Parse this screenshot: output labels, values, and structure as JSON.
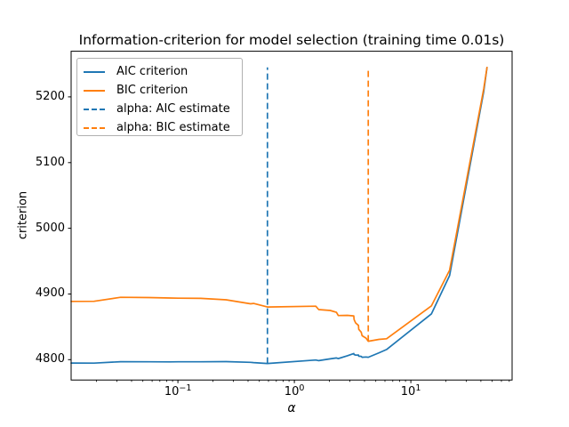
{
  "figure": {
    "title": "Information-criterion for model selection (training time 0.01s)",
    "background": "#ffffff"
  },
  "axes": {
    "xlabel": "α",
    "ylabel": "criterion",
    "x_ticks": [
      {
        "base": "10",
        "exp": "−1",
        "value": 0.1
      },
      {
        "base": "10",
        "exp": "0",
        "value": 1
      },
      {
        "base": "10",
        "exp": "1",
        "value": 10
      }
    ],
    "y_ticks": [
      {
        "label": "4800",
        "value": 4800
      },
      {
        "label": "4900",
        "value": 4900
      },
      {
        "label": "5000",
        "value": 5000
      },
      {
        "label": "5100",
        "value": 5100
      },
      {
        "label": "5200",
        "value": 5200
      }
    ]
  },
  "legend": {
    "items": [
      {
        "label": "AIC criterion",
        "color": "#1f77b4",
        "style": "solid"
      },
      {
        "label": "BIC criterion",
        "color": "#ff7f0e",
        "style": "solid"
      },
      {
        "label": "alpha: AIC estimate",
        "color": "#1f77b4",
        "style": "dashed"
      },
      {
        "label": "alpha: BIC estimate",
        "color": "#ff7f0e",
        "style": "dashed"
      }
    ]
  },
  "chart_data": {
    "type": "line",
    "title": "Information-criterion for model selection (training time 0.01s)",
    "xlabel": "α",
    "ylabel": "criterion",
    "x_scale": "log",
    "grid": false,
    "legend_position": "upper left",
    "xlim": [
      0.0121,
      74.1
    ],
    "ylim": [
      4769.0,
      5269.5
    ],
    "alphas": [
      0.0121,
      0.019,
      0.0322,
      0.0566,
      0.0852,
      0.1007,
      0.157,
      0.259,
      0.42,
      0.446,
      0.5868,
      1.5266,
      1.6183,
      2.0316,
      2.2966,
      2.3843,
      2.85,
      3.2377,
      3.2593,
      3.3583,
      3.5502,
      3.5707,
      3.7504,
      3.8207,
      4.1242,
      4.306,
      5.3296,
      6.1896,
      15.034,
      21.542,
      42.3,
      45.16
    ],
    "series": [
      {
        "name": "AIC criterion",
        "color": "#1f77b4",
        "values": [
          4794.8,
          4794.7,
          4796.9,
          4796.8,
          4796.6,
          4796.7,
          4796.8,
          4797.0,
          4795.9,
          4795.6,
          4794.2,
          4799.5,
          4798.5,
          4801.2,
          4802.6,
          4801.7,
          4806.0,
          4809.4,
          4807.7,
          4806.9,
          4807.1,
          4805.3,
          4805.0,
          4803.6,
          4804.1,
          4803.6,
          4810.4,
          4815.4,
          4869.7,
          4928.0,
          5208.3,
          5244.8
        ]
      },
      {
        "name": "BIC criterion",
        "color": "#ff7f0e",
        "values": [
          4888.7,
          4888.9,
          4894.9,
          4894.5,
          4893.9,
          4893.6,
          4893.3,
          4891.1,
          4885.0,
          4885.6,
          4880.2,
          4881.4,
          4876.2,
          4874.9,
          4872.1,
          4867.2,
          4867.4,
          4866.7,
          4860.9,
          4856.0,
          4852.1,
          4846.2,
          4841.8,
          4836.4,
          4832.8,
          4828.1,
          4830.9,
          4831.8,
          4882.0,
          4936.2,
          5212.3,
          5244.8
        ]
      }
    ],
    "vlines": [
      {
        "name": "alpha: AIC estimate",
        "x": 0.5868,
        "ymin": 4794.2,
        "ymax": 5244.8,
        "color": "#1f77b4",
        "style": "dashed"
      },
      {
        "name": "alpha: BIC estimate",
        "x": 4.306,
        "ymin": 4828.1,
        "ymax": 5244.8,
        "color": "#ff7f0e",
        "style": "dashed"
      }
    ]
  }
}
